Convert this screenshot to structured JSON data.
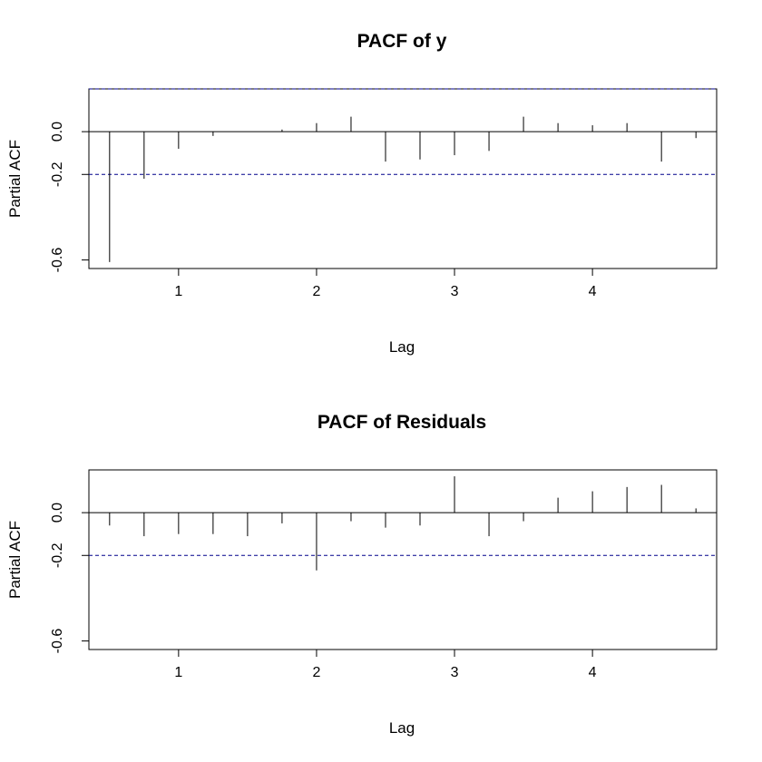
{
  "chart_data": [
    {
      "type": "bar",
      "title": "PACF of y",
      "xlabel": "Lag",
      "ylabel": "Partial ACF",
      "xlim": [
        0.35,
        4.9
      ],
      "ylim": [
        -0.64,
        0.2
      ],
      "x_ticks": [
        1,
        2,
        3,
        4
      ],
      "x_tick_labels": [
        "1",
        "2",
        "3",
        "4"
      ],
      "y_ticks": [
        -0.6,
        -0.2,
        0.0
      ],
      "y_tick_labels": [
        "-0.6",
        "-0.2",
        "0.0"
      ],
      "confidence_line": {
        "values": [
          0.2,
          -0.2
        ],
        "color": "#00008b",
        "style": "dashed"
      },
      "lags": [
        0.5,
        0.75,
        1.0,
        1.25,
        1.5,
        1.75,
        2.0,
        2.25,
        2.5,
        2.75,
        3.0,
        3.25,
        3.5,
        3.75,
        4.0,
        4.25,
        4.5,
        4.75
      ],
      "values": [
        -0.61,
        -0.22,
        -0.08,
        -0.02,
        0.0,
        0.01,
        0.04,
        0.07,
        -0.14,
        -0.13,
        -0.11,
        -0.09,
        0.07,
        0.04,
        0.03,
        0.04,
        -0.14,
        -0.03
      ],
      "grid": false
    },
    {
      "type": "bar",
      "title": "PACF of Residuals",
      "xlabel": "Lag",
      "ylabel": "Partial ACF",
      "xlim": [
        0.35,
        4.9
      ],
      "ylim": [
        -0.64,
        0.2
      ],
      "x_ticks": [
        1,
        2,
        3,
        4
      ],
      "x_tick_labels": [
        "1",
        "2",
        "3",
        "4"
      ],
      "y_ticks": [
        -0.6,
        -0.2,
        0.0
      ],
      "y_tick_labels": [
        "-0.6",
        "-0.2",
        "0.0"
      ],
      "confidence_line": {
        "values": [
          -0.2
        ],
        "color": "#00008b",
        "style": "dashed"
      },
      "lags": [
        0.5,
        0.75,
        1.0,
        1.25,
        1.5,
        1.75,
        2.0,
        2.25,
        2.5,
        2.75,
        3.0,
        3.25,
        3.5,
        3.75,
        4.0,
        4.25,
        4.5,
        4.75
      ],
      "values": [
        -0.06,
        -0.11,
        -0.1,
        -0.1,
        -0.11,
        -0.05,
        -0.27,
        -0.04,
        -0.07,
        -0.06,
        0.17,
        -0.11,
        -0.04,
        0.07,
        0.1,
        0.12,
        0.13,
        0.02
      ],
      "grid": false
    }
  ]
}
